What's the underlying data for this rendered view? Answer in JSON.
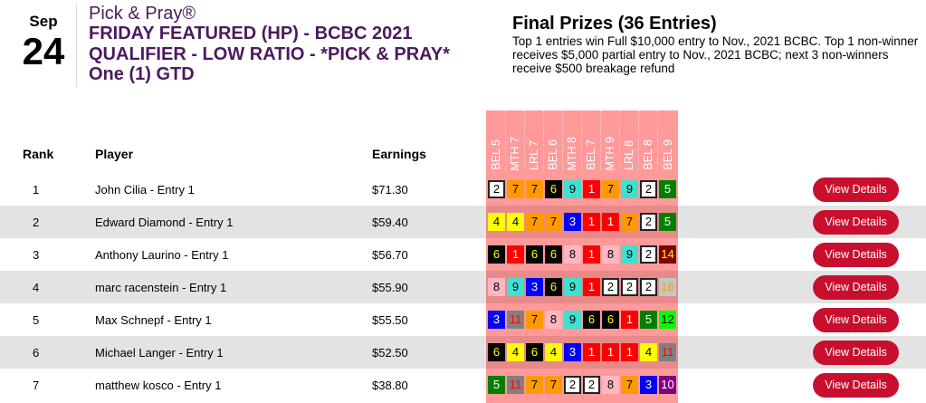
{
  "event": {
    "month": "Sep",
    "day": "24",
    "brand": "Pick & Pray®",
    "name": "FRIDAY FEATURED (HP) - BCBC 2021 QUALIFIER - LOW RATIO - *PICK & PRAY* One (1) GTD"
  },
  "prizes": {
    "title": "Final Prizes (36 Entries)",
    "text": "Top 1 entries win Full $10,000 entry to Nov., 2021 BCBC. Top 1 non-winner receives $5,000 partial entry to Nov., 2021 BCBC; next 3 non-winners receive $500 breakage refund"
  },
  "table": {
    "headers": {
      "rank": "Rank",
      "player": "Player",
      "earnings": "Earnings"
    },
    "races": [
      "BEL 5",
      "MTH 7",
      "LRL 7",
      "BEL 6",
      "MTH 8",
      "BEL 7",
      "MTH 9",
      "LRL 8",
      "BEL 8",
      "BEL 9"
    ],
    "button_label": "View Details",
    "rows": [
      {
        "rank": "1",
        "player": "John Cilia - Entry 1",
        "earnings": "$71.30",
        "picks": [
          "2",
          "7",
          "7",
          "6",
          "9",
          "1",
          "7",
          "9",
          "2",
          "5"
        ]
      },
      {
        "rank": "2",
        "player": "Edward Diamond - Entry 1",
        "earnings": "$59.40",
        "picks": [
          "4",
          "4",
          "7",
          "7",
          "3",
          "1",
          "1",
          "7",
          "2",
          "5"
        ]
      },
      {
        "rank": "3",
        "player": "Anthony Laurino - Entry 1",
        "earnings": "$56.70",
        "picks": [
          "6",
          "1",
          "6",
          "6",
          "8",
          "1",
          "8",
          "9",
          "2",
          "14"
        ]
      },
      {
        "rank": "4",
        "player": "marc racenstein - Entry 1",
        "earnings": "$55.90",
        "picks": [
          "8",
          "9",
          "3",
          "6",
          "9",
          "1",
          "2",
          "2",
          "2",
          "16"
        ]
      },
      {
        "rank": "5",
        "player": "Max Schnepf - Entry 1",
        "earnings": "$55.50",
        "picks": [
          "3",
          "11",
          "7",
          "8",
          "9",
          "6",
          "6",
          "1",
          "5",
          "12"
        ]
      },
      {
        "rank": "6",
        "player": "Michael Langer - Entry 1",
        "earnings": "$52.50",
        "picks": [
          "6",
          "4",
          "6",
          "4",
          "3",
          "1",
          "1",
          "1",
          "4",
          "11"
        ]
      },
      {
        "rank": "7",
        "player": "matthew kosco - Entry 1",
        "earnings": "$38.80",
        "picks": [
          "5",
          "11",
          "7",
          "7",
          "2",
          "2",
          "8",
          "7",
          "3",
          "10"
        ]
      }
    ]
  },
  "saddle_colors": {
    "1": [
      "#ff0000",
      "#ffffff"
    ],
    "2": [
      "#ffffff",
      "#000000"
    ],
    "3": [
      "#0000ff",
      "#ffffff"
    ],
    "4": [
      "#ffff00",
      "#000000"
    ],
    "5": [
      "#008000",
      "#ffffff"
    ],
    "6": [
      "#000000",
      "#ffff00"
    ],
    "7": [
      "#ff9900",
      "#000000"
    ],
    "8": [
      "#ffb6c1",
      "#000000"
    ],
    "9": [
      "#40e0d0",
      "#000000"
    ],
    "10": [
      "#800080",
      "#ffffff"
    ],
    "11": [
      "#808080",
      "#ff0000"
    ],
    "12": [
      "#00ff00",
      "#000000"
    ],
    "14": [
      "#800000",
      "#ffff00"
    ],
    "16": [
      "#c0c8c8",
      "#ff9900"
    ]
  },
  "accent": "#c8102e",
  "title_color": "#4b1a5e"
}
